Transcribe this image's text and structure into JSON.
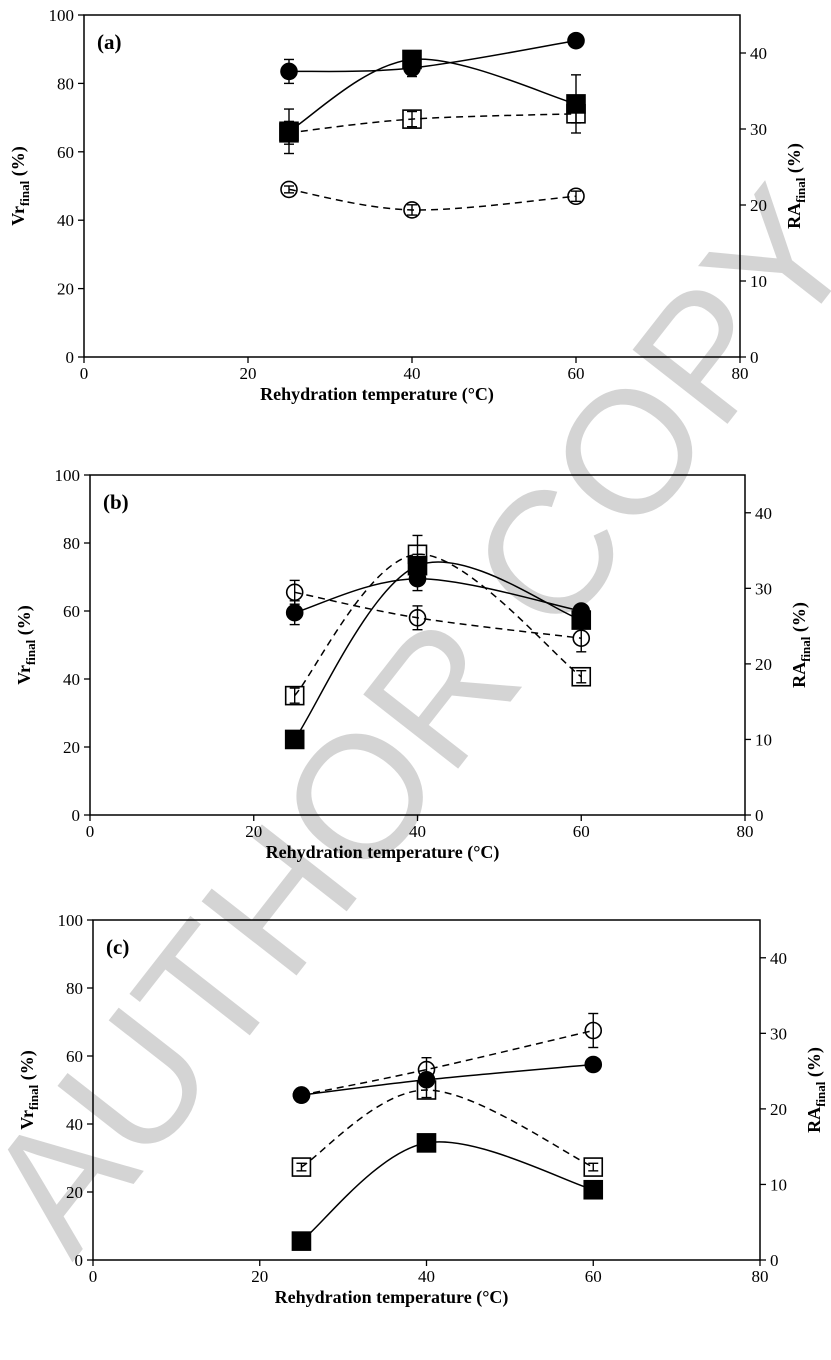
{
  "watermark": "AUTHOR COPY",
  "chart_data": [
    {
      "type": "scatter",
      "panel_label": "(a)",
      "xlabel": "Rehydration temperature (°C)",
      "ylabel_left": "Vr",
      "ylabel_left_sub": "final",
      "ylabel_left_unit": " (%)",
      "ylabel_right": "RA",
      "ylabel_right_sub": "final",
      "ylabel_right_unit": " (%)",
      "xlim": [
        0,
        80
      ],
      "xticks": [
        0,
        20,
        40,
        60,
        80
      ],
      "ylim_left": [
        0,
        100
      ],
      "yticks_left": [
        0,
        20,
        40,
        60,
        80,
        100
      ],
      "ylim_right": [
        0,
        45
      ],
      "yticks_right": [
        0,
        10,
        20,
        30,
        40
      ],
      "x": [
        25,
        40,
        60
      ],
      "grid": false,
      "series": [
        {
          "marker": "filled-circle",
          "axis": "left",
          "line": "solid",
          "values": [
            83.5,
            84.5,
            92.5
          ],
          "errors": [
            3.5,
            2.5,
            0
          ]
        },
        {
          "marker": "open-circle",
          "axis": "left",
          "line": "dashed",
          "values": [
            49,
            43,
            47
          ],
          "errors": [
            1,
            1.5,
            1.5
          ]
        },
        {
          "marker": "filled-square",
          "axis": "left",
          "line": "solid",
          "values": [
            66,
            87,
            74
          ],
          "errors": [
            6.5,
            1.5,
            8.5
          ]
        },
        {
          "marker": "open-square",
          "axis": "right",
          "line": "dashed",
          "values": [
            29.5,
            31.3,
            32
          ],
          "errors": [
            1.5,
            1,
            1.2
          ]
        }
      ]
    },
    {
      "type": "scatter",
      "panel_label": "(b)",
      "xlabel": "Rehydration temperature (°C)",
      "ylabel_left": "Vr",
      "ylabel_left_sub": "final",
      "ylabel_left_unit": " (%)",
      "ylabel_right": "RA",
      "ylabel_right_sub": "final",
      "ylabel_right_unit": " (%)",
      "xlim": [
        0,
        80
      ],
      "xticks": [
        0,
        20,
        40,
        60,
        80
      ],
      "ylim_left": [
        0,
        100
      ],
      "yticks_left": [
        0,
        20,
        40,
        60,
        80,
        100
      ],
      "ylim_right": [
        0,
        45
      ],
      "yticks_right": [
        0,
        10,
        20,
        30,
        40
      ],
      "x": [
        25,
        40,
        60
      ],
      "grid": false,
      "series": [
        {
          "marker": "filled-circle",
          "axis": "left",
          "line": "solid",
          "values": [
            59.5,
            69.5,
            60
          ],
          "errors": [
            3.5,
            3.5,
            1
          ]
        },
        {
          "marker": "open-circle",
          "axis": "left",
          "line": "dashed",
          "values": [
            65.5,
            58,
            52
          ],
          "errors": [
            3.5,
            3.5,
            4
          ]
        },
        {
          "marker": "filled-square",
          "axis": "right",
          "line": "solid",
          "values": [
            10,
            33,
            25.8
          ],
          "errors": [
            0.5,
            1.5,
            0.8
          ]
        },
        {
          "marker": "open-square",
          "axis": "right",
          "line": "dashed",
          "values": [
            15.8,
            34.5,
            18.3
          ],
          "errors": [
            1,
            2.5,
            0.8
          ]
        }
      ]
    },
    {
      "type": "scatter",
      "panel_label": "(c)",
      "xlabel": "Rehydration temperature (°C)",
      "ylabel_left": "Vr",
      "ylabel_left_sub": "final",
      "ylabel_left_unit": " (%)",
      "ylabel_right": "RA",
      "ylabel_right_sub": "final",
      "ylabel_right_unit": " (%)",
      "xlim": [
        0,
        80
      ],
      "xticks": [
        0,
        20,
        40,
        60,
        80
      ],
      "ylim_left": [
        0,
        100
      ],
      "yticks_left": [
        0,
        20,
        40,
        60,
        80,
        100
      ],
      "ylim_right": [
        0,
        45
      ],
      "yticks_right": [
        0,
        10,
        20,
        30,
        40
      ],
      "x": [
        25,
        40,
        60
      ],
      "grid": false,
      "series": [
        {
          "marker": "filled-circle",
          "axis": "left",
          "line": "solid",
          "values": [
            48.5,
            53,
            57.5
          ],
          "errors": [
            2,
            1,
            0.5
          ]
        },
        {
          "marker": "open-circle",
          "axis": "left",
          "line": "dashed",
          "values": [
            48.5,
            56,
            67.5
          ],
          "errors": [
            1.5,
            3.5,
            5
          ]
        },
        {
          "marker": "filled-square",
          "axis": "right",
          "line": "solid",
          "values": [
            2.5,
            15.5,
            9.3
          ],
          "errors": [
            0.5,
            0.5,
            0.5
          ]
        },
        {
          "marker": "open-square",
          "axis": "right",
          "line": "dashed",
          "values": [
            12.3,
            22.5,
            12.3
          ],
          "errors": [
            0.5,
            1,
            0.5
          ]
        }
      ]
    }
  ]
}
